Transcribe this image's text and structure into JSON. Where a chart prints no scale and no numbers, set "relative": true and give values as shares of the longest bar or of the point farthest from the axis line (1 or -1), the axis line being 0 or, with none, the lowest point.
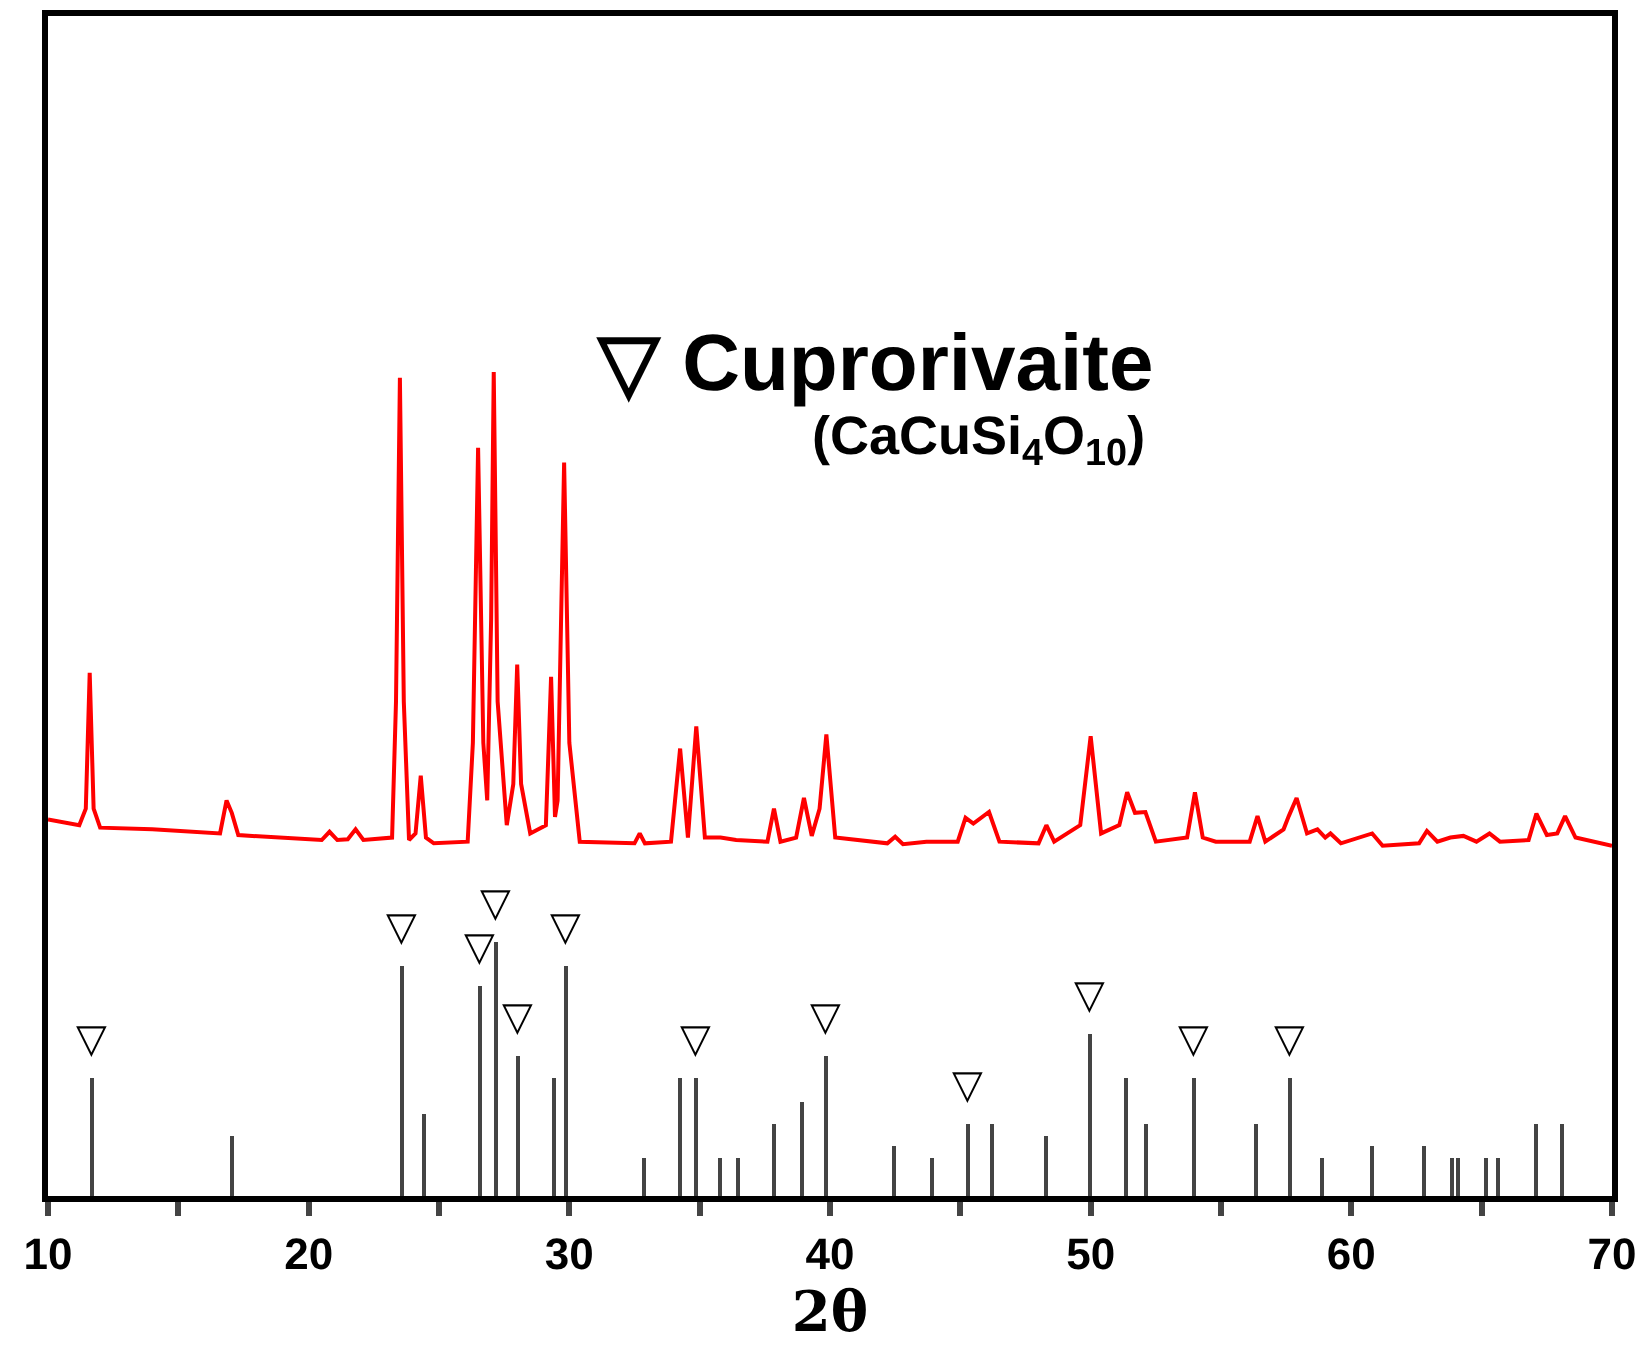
{
  "chart_data": {
    "type": "line",
    "relative": true,
    "xlabel": "2θ",
    "xlim": [
      10,
      70
    ],
    "xticks": [
      10,
      {
        "value": 15,
        "label": null
      },
      20,
      {
        "value": 25,
        "label": null
      },
      30,
      {
        "value": 35,
        "label": null
      },
      40,
      {
        "value": 45,
        "label": null
      },
      50,
      {
        "value": 55,
        "label": null
      },
      60,
      {
        "value": 65,
        "label": null
      },
      70
    ],
    "legend": false,
    "marker": "none",
    "line_style": "solid",
    "series": [
      {
        "color": "#ff0000",
        "x": [
          10,
          11.2,
          11.45,
          11.6,
          11.75,
          12.0,
          14,
          16.6,
          16.85,
          17.05,
          17.3,
          20.5,
          20.8,
          21.1,
          21.5,
          21.8,
          22.1,
          23.2,
          23.35,
          23.5,
          23.65,
          23.85,
          24.1,
          24.3,
          24.5,
          24.8,
          26.1,
          26.3,
          26.5,
          26.7,
          26.85,
          27.0,
          27.1,
          27.25,
          27.6,
          27.85,
          28.0,
          28.15,
          28.5,
          29.1,
          29.3,
          29.45,
          29.55,
          29.8,
          30.0,
          30.4,
          32.5,
          32.7,
          32.9,
          33.9,
          34.25,
          34.55,
          34.87,
          35.2,
          35.8,
          36.4,
          37.6,
          37.85,
          38.1,
          38.7,
          39.0,
          39.3,
          39.6,
          39.86,
          40.2,
          42.2,
          42.5,
          42.8,
          43.7,
          44.9,
          45.2,
          45.5,
          46.1,
          46.5,
          48.0,
          48.3,
          48.6,
          49.6,
          50.0,
          50.4,
          51.1,
          51.4,
          51.7,
          52.1,
          52.5,
          53.7,
          54.0,
          54.3,
          54.8,
          56.1,
          56.4,
          56.7,
          57.4,
          57.6,
          57.9,
          58.3,
          58.7,
          59.0,
          59.2,
          59.6,
          60.8,
          61.2,
          62.6,
          62.9,
          63.3,
          63.8,
          64.3,
          64.8,
          65.3,
          65.7,
          66.8,
          67.1,
          67.5,
          67.9,
          68.2,
          68.6,
          70
        ],
        "values": [
          0.457,
          0.45,
          0.47,
          0.635,
          0.47,
          0.447,
          0.445,
          0.44,
          0.48,
          0.465,
          0.438,
          0.432,
          0.442,
          0.432,
          0.433,
          0.445,
          0.432,
          0.435,
          0.6,
          0.993,
          0.6,
          0.432,
          0.44,
          0.51,
          0.435,
          0.428,
          0.43,
          0.55,
          0.908,
          0.55,
          0.48,
          0.7,
          1.0,
          0.6,
          0.45,
          0.5,
          0.645,
          0.5,
          0.44,
          0.45,
          0.63,
          0.46,
          0.48,
          0.89,
          0.55,
          0.43,
          0.428,
          0.44,
          0.428,
          0.43,
          0.543,
          0.435,
          0.57,
          0.435,
          0.435,
          0.432,
          0.43,
          0.47,
          0.43,
          0.435,
          0.483,
          0.437,
          0.47,
          0.56,
          0.435,
          0.428,
          0.436,
          0.427,
          0.43,
          0.43,
          0.459,
          0.452,
          0.466,
          0.43,
          0.428,
          0.45,
          0.43,
          0.45,
          0.558,
          0.44,
          0.45,
          0.49,
          0.465,
          0.466,
          0.43,
          0.435,
          0.49,
          0.435,
          0.43,
          0.43,
          0.461,
          0.43,
          0.445,
          0.461,
          0.483,
          0.44,
          0.445,
          0.435,
          0.44,
          0.428,
          0.44,
          0.425,
          0.428,
          0.443,
          0.43,
          0.435,
          0.437,
          0.43,
          0.44,
          0.43,
          0.432,
          0.464,
          0.438,
          0.44,
          0.461,
          0.435,
          0.425
        ]
      },
      {
        "type": "bar",
        "color": "#444444",
        "x": [
          11.66,
          17.06,
          23.6,
          24.4,
          26.6,
          27.2,
          28.0,
          29.4,
          29.9,
          32.85,
          34.25,
          34.84,
          35.79,
          36.48,
          37.83,
          38.93,
          39.83,
          42.46,
          43.9,
          45.3,
          46.2,
          48.27,
          49.96,
          51.34,
          52.1,
          53.95,
          56.35,
          57.66,
          58.86,
          60.78,
          62.8,
          63.85,
          64.1,
          65.15,
          65.64,
          67.12,
          68.1
        ],
        "values": [
          0.143,
          0.072,
          0.28,
          0.099,
          0.254,
          0.309,
          0.169,
          0.143,
          0.28,
          0.046,
          0.143,
          0.143,
          0.046,
          0.046,
          0.087,
          0.114,
          0.169,
          0.06,
          0.046,
          0.087,
          0.087,
          0.072,
          0.196,
          0.143,
          0.087,
          0.143,
          0.087,
          0.143,
          0.046,
          0.06,
          0.06,
          0.046,
          0.046,
          0.046,
          0.046,
          0.087,
          0.087
        ]
      }
    ],
    "annotations": [
      "▽ Cuprorivaite",
      "(CaCuSi$_{4}$O$_{10}$)",
      {
        "text": "▽",
        "x": 11.66,
        "y": 0.143
      },
      {
        "text": "▽",
        "x": 23.6,
        "y": 0.28
      },
      {
        "text": "▽",
        "x": 26.6,
        "y": 0.254
      },
      {
        "text": "▽",
        "x": 27.2,
        "y": 0.309
      },
      {
        "text": "▽",
        "x": 28.0,
        "y": 0.169
      },
      {
        "text": "▽",
        "x": 29.9,
        "y": 0.28
      },
      {
        "text": "▽",
        "x": 34.84,
        "y": 0.143
      },
      {
        "text": "▽",
        "x": 39.83,
        "y": 0.169
      },
      {
        "text": "▽",
        "x": 45.3,
        "y": 0.087
      },
      {
        "text": "▽",
        "x": 49.96,
        "y": 0.196
      },
      {
        "text": "▽",
        "x": 53.95,
        "y": 0.143
      },
      {
        "text": "▽",
        "x": 57.66,
        "y": 0.143
      }
    ]
  }
}
